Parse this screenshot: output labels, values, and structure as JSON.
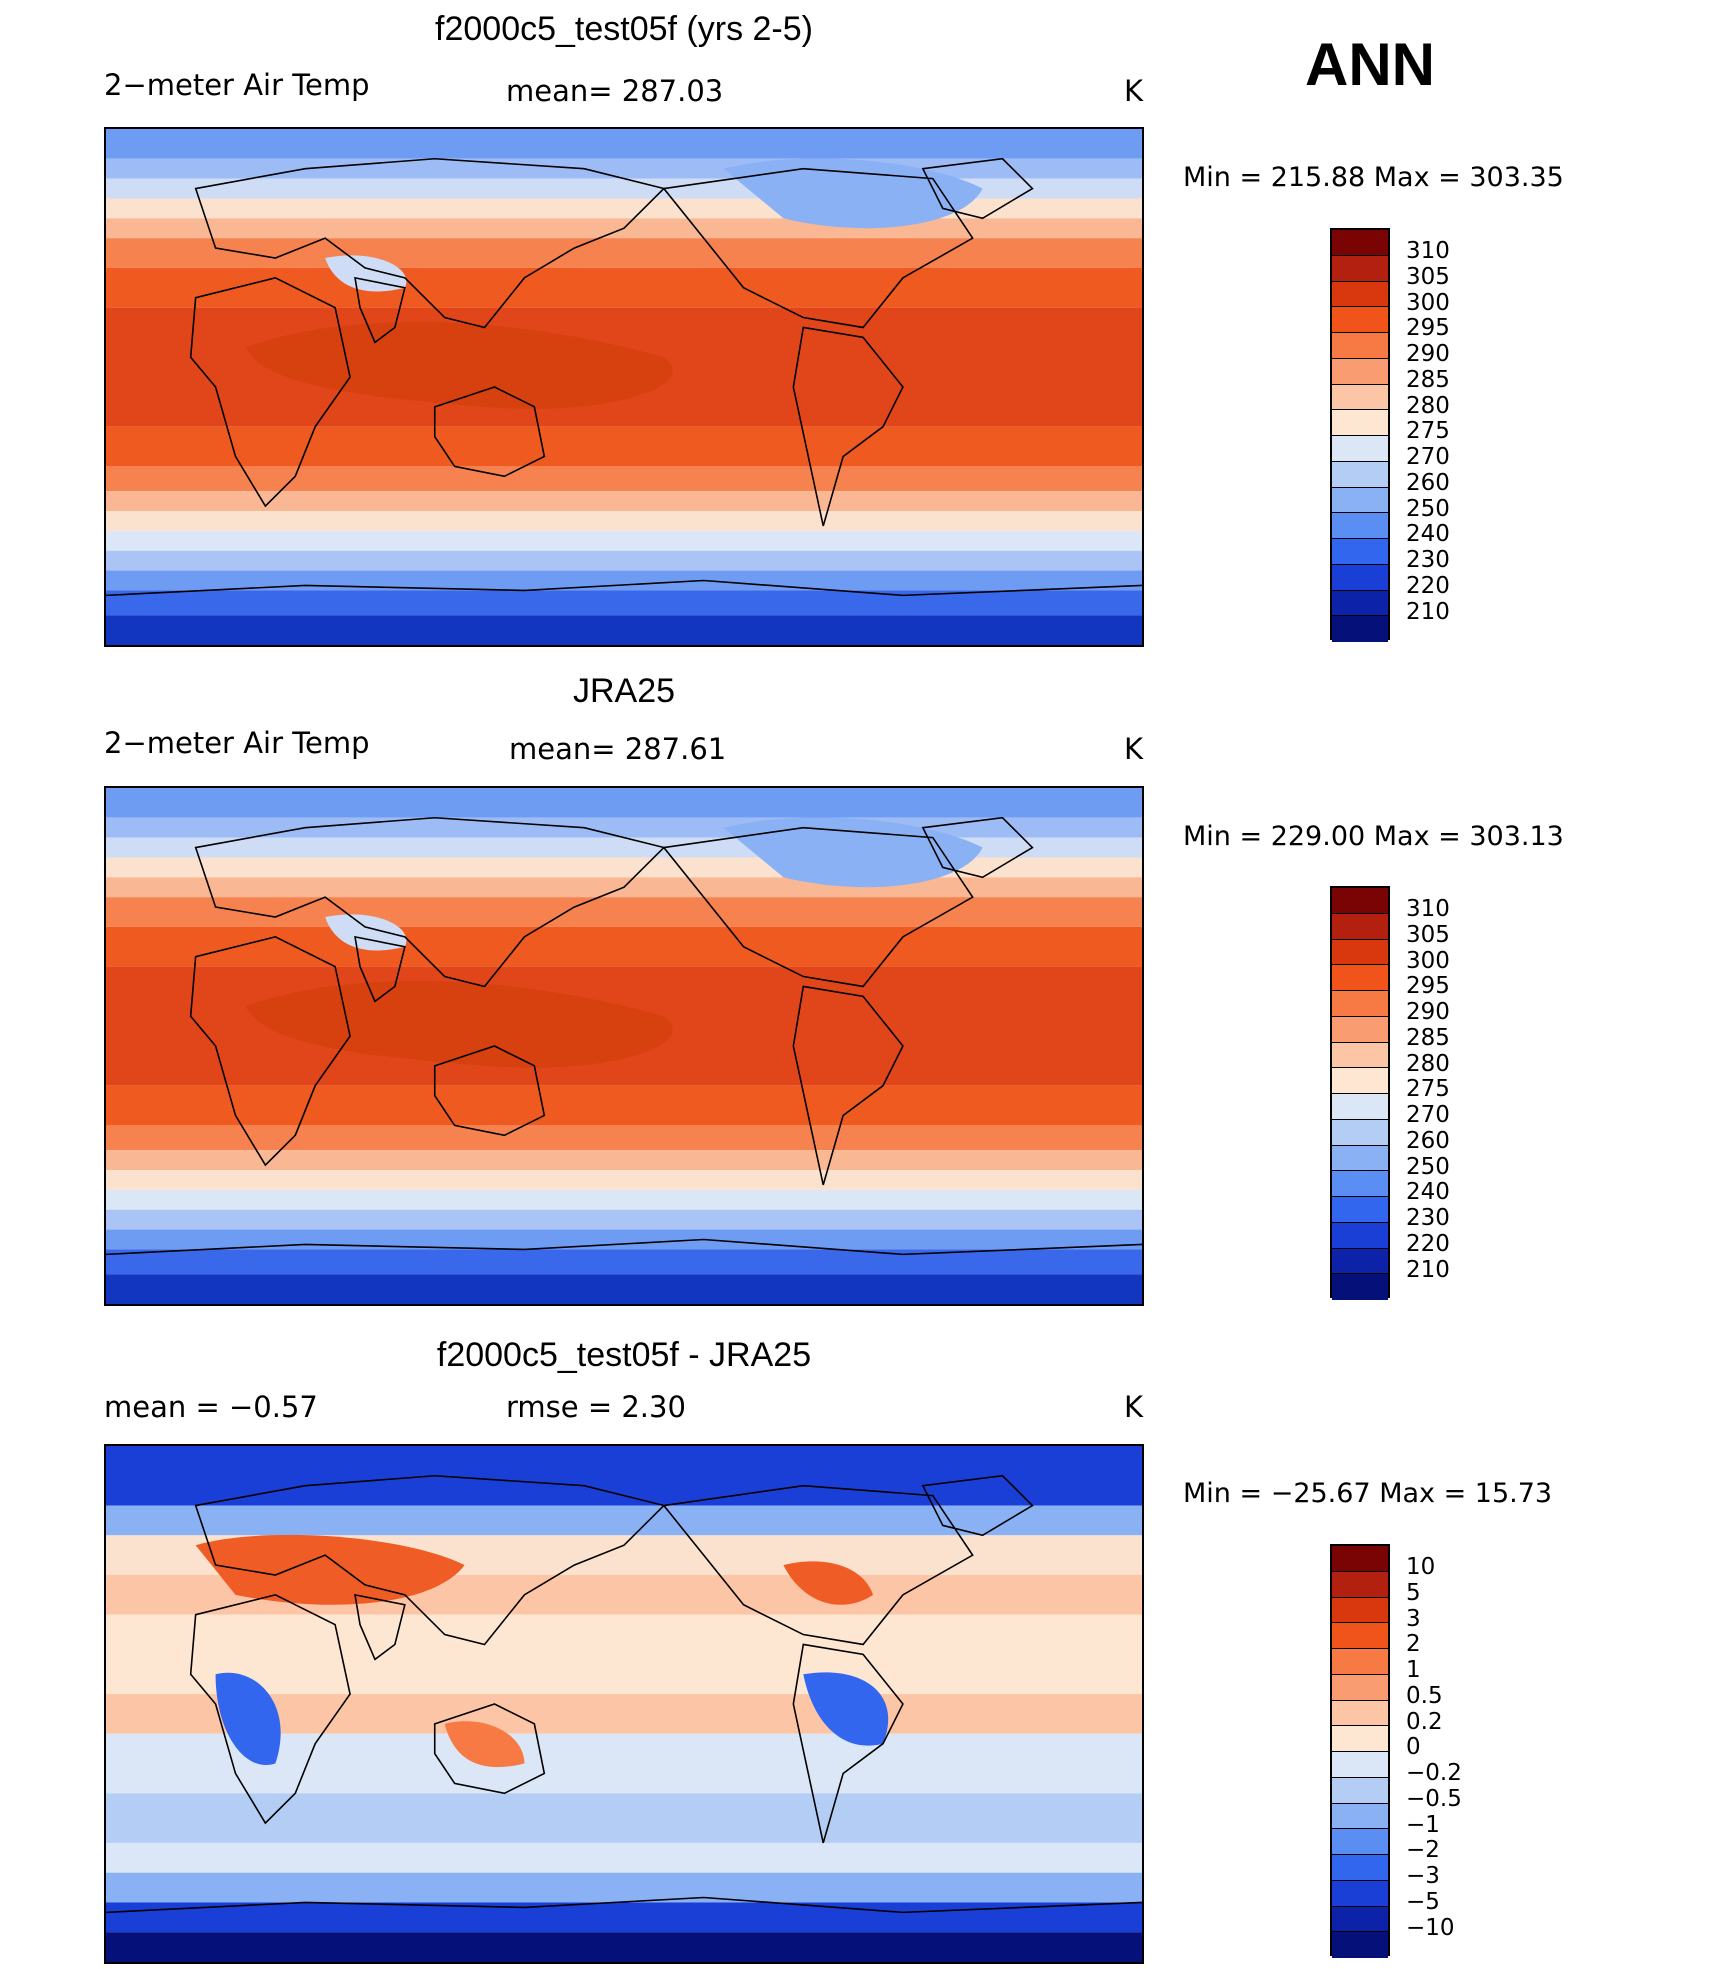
{
  "season": "ANN",
  "panels": [
    {
      "title": "f2000c5_test05f (yrs 2-5)",
      "left_label": "2−meter Air Temp",
      "center_label": "mean=  287.03",
      "units": "K",
      "minmax": "Min  =  215.88  Max  =  303.35",
      "colorbar_labels": [
        "310",
        "305",
        "300",
        "295",
        "290",
        "285",
        "280",
        "275",
        "270",
        "260",
        "250",
        "240",
        "230",
        "220",
        "210"
      ]
    },
    {
      "title": "JRA25",
      "left_label": "2−meter Air Temp",
      "center_label": "mean=  287.61",
      "units": "K",
      "minmax": "Min  =  229.00  Max  =  303.13",
      "colorbar_labels": [
        "310",
        "305",
        "300",
        "295",
        "290",
        "285",
        "280",
        "275",
        "270",
        "260",
        "250",
        "240",
        "230",
        "220",
        "210"
      ]
    },
    {
      "title": "f2000c5_test05f - JRA25",
      "left_label": "mean  =    −0.57",
      "center_label": "rmse  =     2.30",
      "units": "K",
      "minmax": "Min  =  −25.67  Max  =    15.73",
      "colorbar_labels": [
        "10",
        "5",
        "3",
        "2",
        "1",
        "0.5",
        "0.2",
        "0",
        "−0.2",
        "−0.5",
        "−1",
        "−2",
        "−3",
        "−5",
        "−10"
      ]
    }
  ],
  "colors": {
    "temp_scale": [
      "#7a0403",
      "#b3200f",
      "#d9380e",
      "#f0541a",
      "#f77a45",
      "#fa9c72",
      "#fcc5a6",
      "#fde6d2",
      "#dbe7f7",
      "#b3cdf5",
      "#8bb1f5",
      "#5a8ef2",
      "#3366ee",
      "#1a3fd6",
      "#0c22a8",
      "#051078"
    ],
    "diff_scale": [
      "#7a0403",
      "#b3200f",
      "#d9380e",
      "#f0541a",
      "#f77a45",
      "#fa9c72",
      "#fcc5a6",
      "#fde6d2",
      "#dbe7f7",
      "#b3cdf5",
      "#8bb1f5",
      "#5a8ef2",
      "#3366ee",
      "#1a3fd6",
      "#0c22a8",
      "#051078"
    ]
  }
}
